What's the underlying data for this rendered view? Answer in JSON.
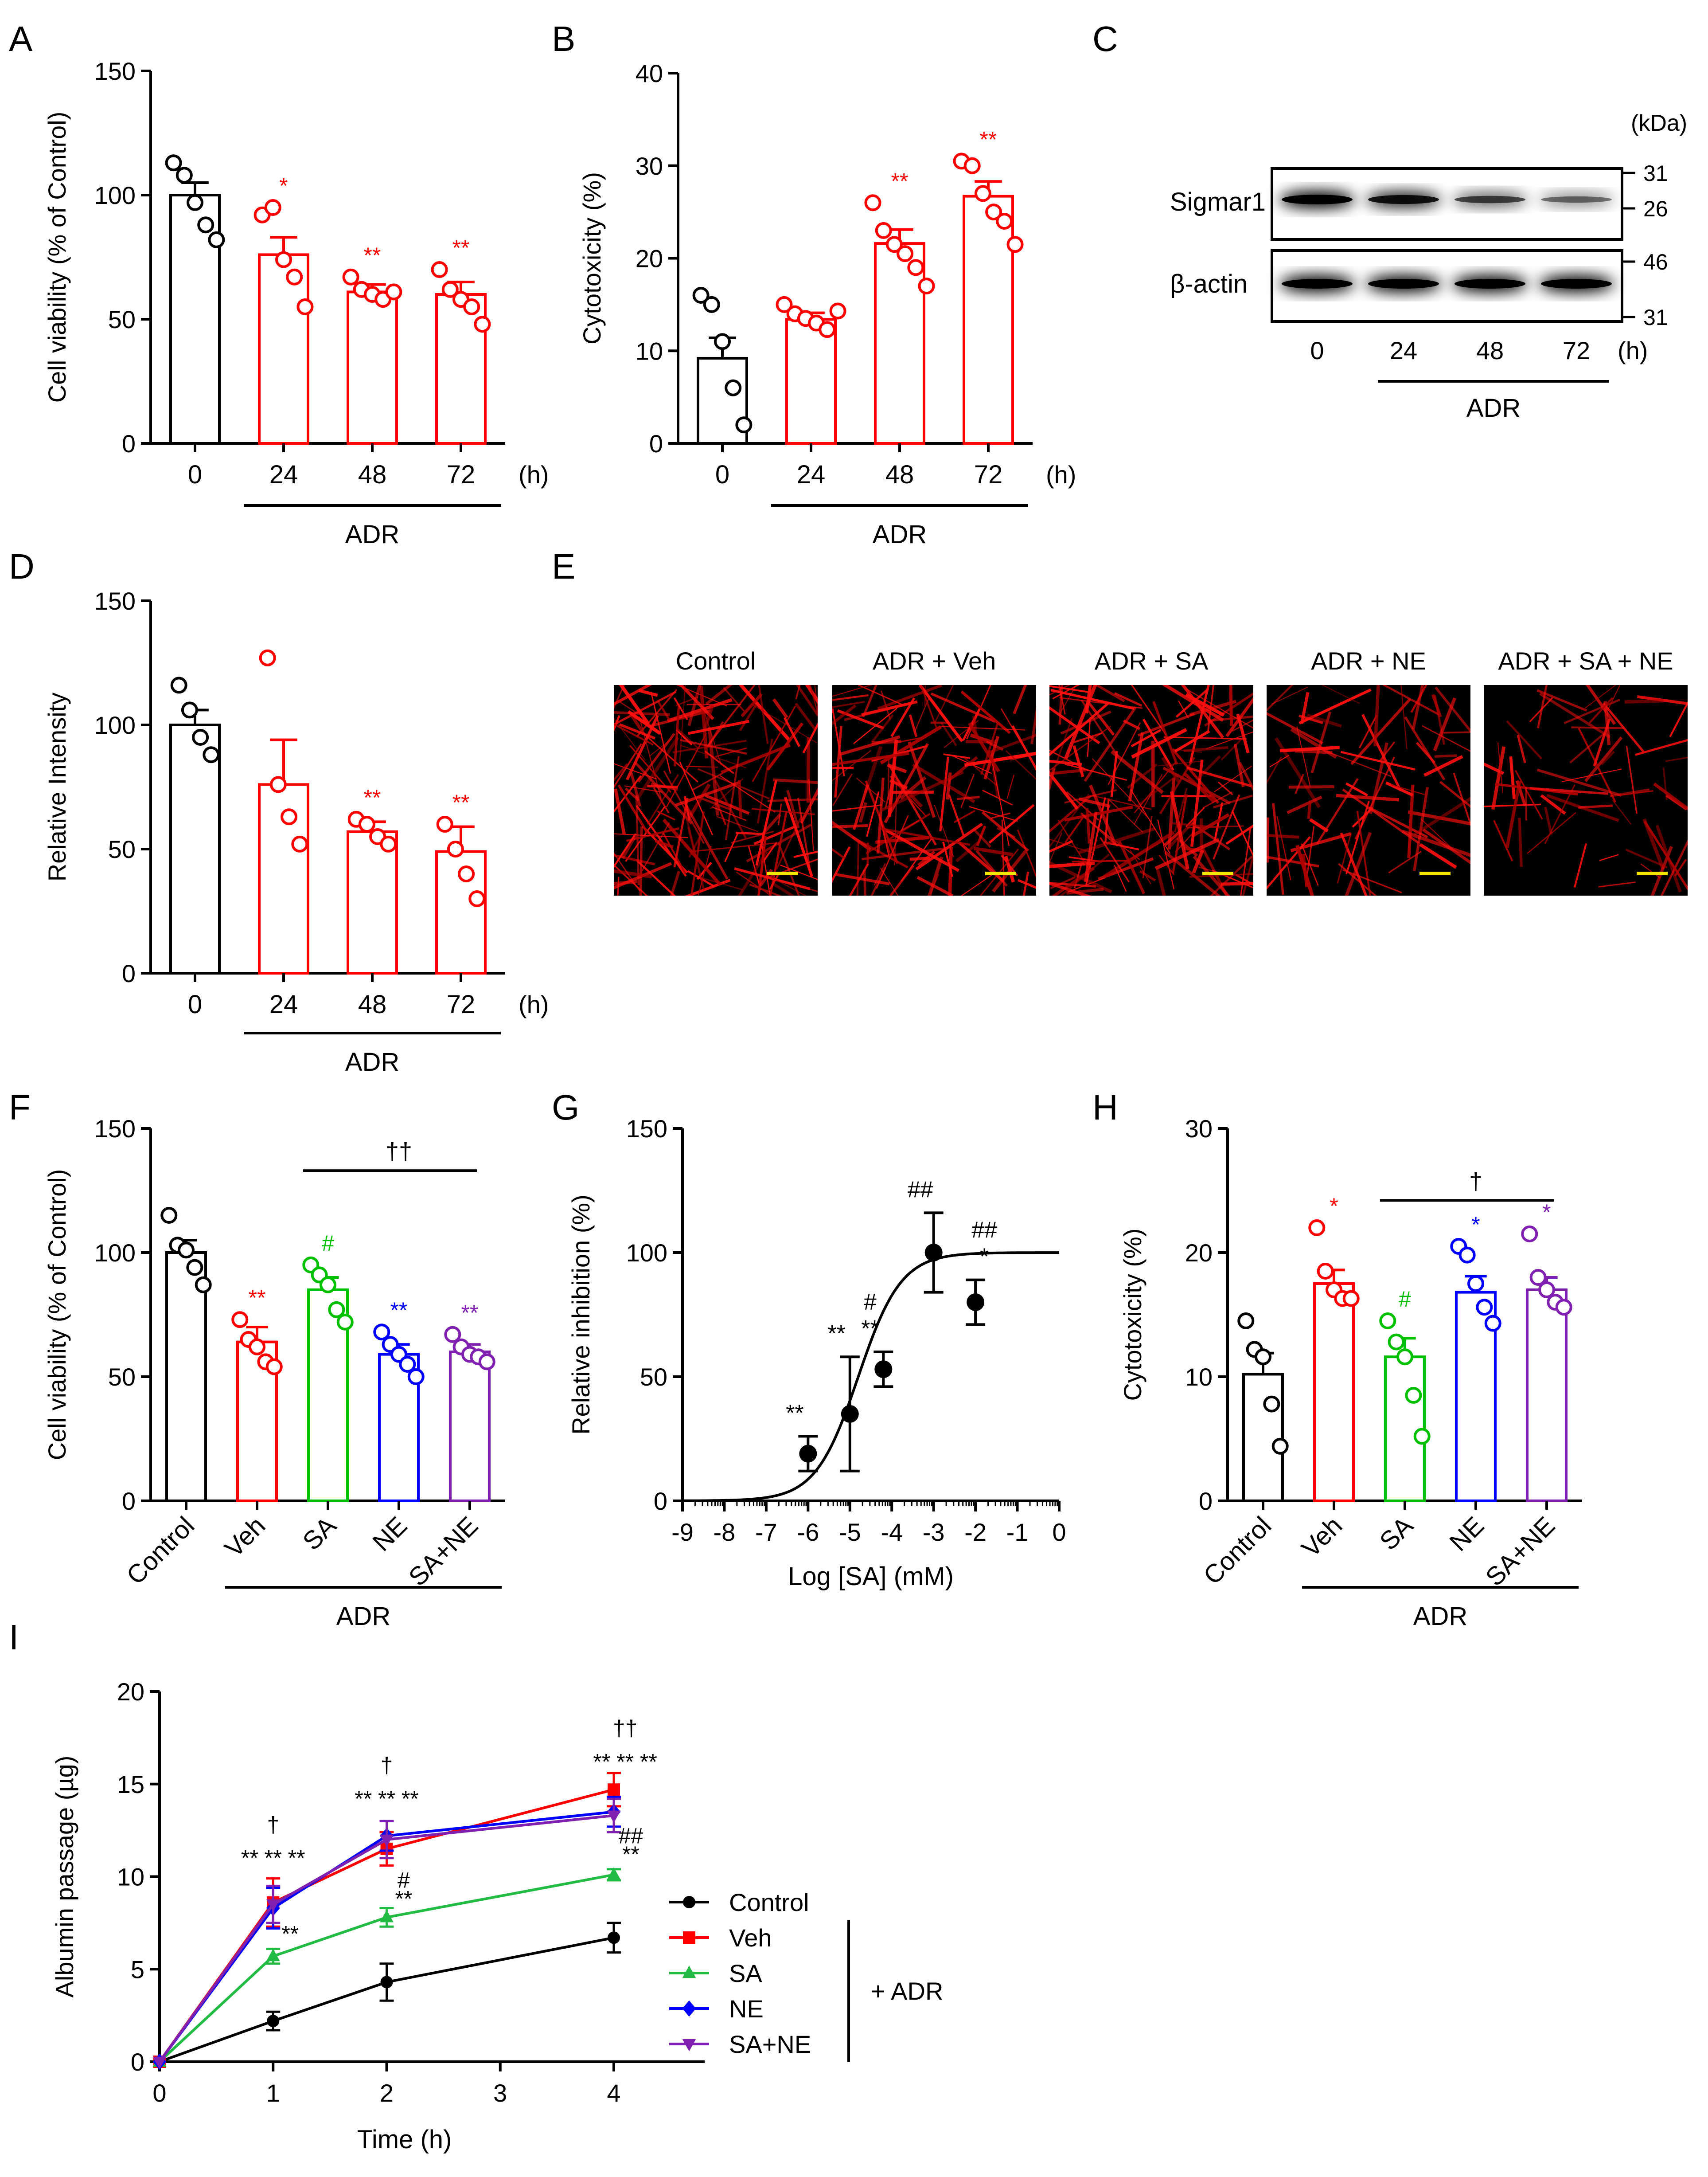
{
  "panels": {
    "A": {
      "letter": "A"
    },
    "B": {
      "letter": "B"
    },
    "C": {
      "letter": "C"
    },
    "D": {
      "letter": "D"
    },
    "E": {
      "letter": "E"
    },
    "F": {
      "letter": "F"
    },
    "G": {
      "letter": "G"
    },
    "H": {
      "letter": "H"
    },
    "I": {
      "letter": "I"
    }
  },
  "blot": {
    "unit": "(kDa)",
    "rows": [
      {
        "label": "Sigmar1",
        "intensity": [
          1.0,
          0.85,
          0.55,
          0.35
        ],
        "markers": [
          "31",
          "26"
        ]
      },
      {
        "label": "β-actin",
        "intensity": [
          1.0,
          1.0,
          1.0,
          1.0
        ],
        "markers": [
          "46",
          "31"
        ]
      }
    ],
    "lanes": [
      "0",
      "24",
      "48",
      "72"
    ],
    "unit_h": "(h)",
    "group": "ADR"
  },
  "micrographs": {
    "labels": [
      "Control",
      "ADR + Veh",
      "ADR + SA",
      "ADR + NE",
      "ADR + SA + NE"
    ],
    "density": [
      0.95,
      0.8,
      0.9,
      0.45,
      0.35
    ],
    "scale_bar_color": "#f2e600"
  },
  "colors": {
    "black": "#000000",
    "red": "#ff0000",
    "green": "#00c000",
    "blue": "#0000ff",
    "purple": "#8020b0",
    "line_green": "#22bb44"
  },
  "chart_data": [
    {
      "id": "A",
      "type": "bar",
      "ylabel": "Cell viability (% of Control)",
      "ylim": [
        0,
        150
      ],
      "yticks": [
        "0",
        "50",
        "100",
        "150"
      ],
      "categories": [
        "0",
        "24",
        "48",
        "72"
      ],
      "x_unit": "(h)",
      "group_label": "ADR",
      "values": [
        100,
        76,
        61,
        60
      ],
      "sem": [
        5,
        7,
        3,
        5
      ],
      "points": [
        [
          113,
          108,
          97,
          88,
          82
        ],
        [
          92,
          95,
          74,
          67,
          55
        ],
        [
          67,
          62,
          60,
          58,
          61
        ],
        [
          70,
          62,
          58,
          55,
          48
        ]
      ],
      "bar_colors": [
        "#000000",
        "#ff0000",
        "#ff0000",
        "#ff0000"
      ],
      "significance": [
        "",
        "*",
        "**",
        "**"
      ]
    },
    {
      "id": "B",
      "type": "bar",
      "ylabel": "Cytotoxicity (%)",
      "ylim": [
        0,
        40
      ],
      "yticks": [
        "0",
        "10",
        "20",
        "30",
        "40"
      ],
      "categories": [
        "0",
        "24",
        "48",
        "72"
      ],
      "x_unit": "(h)",
      "group_label": "ADR",
      "values": [
        9.2,
        13.4,
        21.6,
        26.7
      ],
      "sem": [
        2.2,
        0.7,
        1.5,
        1.6
      ],
      "points": [
        [
          16,
          15,
          11,
          6,
          2
        ],
        [
          15,
          14,
          13.5,
          13,
          12.3,
          14.3
        ],
        [
          26,
          23,
          21.5,
          20.5,
          19,
          17
        ],
        [
          30.5,
          30,
          27,
          25,
          24,
          21.5
        ]
      ],
      "bar_colors": [
        "#000000",
        "#ff0000",
        "#ff0000",
        "#ff0000"
      ],
      "significance": [
        "",
        "",
        "**",
        "**"
      ]
    },
    {
      "id": "D",
      "type": "bar",
      "ylabel": "Relative Intensity",
      "ylim": [
        0,
        150
      ],
      "yticks": [
        "0",
        "50",
        "100",
        "150"
      ],
      "categories": [
        "0",
        "24",
        "48",
        "72"
      ],
      "x_unit": "(h)",
      "group_label": "ADR",
      "values": [
        100,
        76,
        57,
        49
      ],
      "sem": [
        6,
        18,
        4,
        10
      ],
      "points": [
        [
          116,
          106,
          95,
          88
        ],
        [
          127,
          76,
          63,
          52
        ],
        [
          62,
          60,
          55,
          52
        ],
        [
          60,
          50,
          40,
          30
        ]
      ],
      "bar_colors": [
        "#000000",
        "#ff0000",
        "#ff0000",
        "#ff0000"
      ],
      "significance": [
        "",
        "",
        "**",
        "**"
      ]
    },
    {
      "id": "F",
      "type": "bar",
      "ylabel": "Cell viability (% of Control)",
      "ylim": [
        0,
        150
      ],
      "yticks": [
        "0",
        "50",
        "100",
        "150"
      ],
      "categories": [
        "Control",
        "Veh",
        "SA",
        "NE",
        "SA+NE"
      ],
      "group_label": "ADR",
      "values": [
        100,
        64,
        85,
        59,
        60
      ],
      "sem": [
        5,
        6,
        5,
        4,
        3
      ],
      "points": [
        [
          115,
          103,
          101,
          94,
          87
        ],
        [
          73,
          65,
          62,
          56,
          54
        ],
        [
          95,
          91,
          87,
          77,
          72
        ],
        [
          68,
          63,
          59,
          55,
          50
        ],
        [
          67,
          62,
          59,
          58,
          56
        ]
      ],
      "bar_colors": [
        "#000000",
        "#ff0000",
        "#00c000",
        "#0000ff",
        "#8020b0"
      ],
      "significance": [
        "",
        "**",
        "#",
        "**",
        "**"
      ],
      "bracket_label": "††"
    },
    {
      "id": "G",
      "type": "scatter",
      "ylabel": "Relative inhibition (%)",
      "xlabel": "Log [SA] (mM)",
      "xlim": [
        -9,
        0
      ],
      "ylim": [
        0,
        150
      ],
      "xticks": [
        "-9",
        "-8",
        "-7",
        "-6",
        "-5",
        "-4",
        "-3",
        "-2",
        "-1",
        "0"
      ],
      "yticks": [
        "0",
        "50",
        "100",
        "150"
      ],
      "x": [
        -6,
        -5,
        -4.2,
        -3,
        -2
      ],
      "y": [
        19,
        35,
        53,
        100,
        80
      ],
      "err": [
        7,
        23,
        7,
        16,
        9
      ],
      "fit": {
        "bottom": 0,
        "top": 100,
        "log_ic50": -4.8,
        "hill": 0.85
      },
      "annotations": [
        [
          "**"
        ],
        [
          "**"
        ],
        [
          "**",
          "#"
        ],
        [
          "##"
        ],
        [
          "*",
          "##"
        ]
      ]
    },
    {
      "id": "H",
      "type": "bar",
      "ylabel": "Cytotoxicity (%)",
      "ylim": [
        0,
        30
      ],
      "yticks": [
        "0",
        "10",
        "20",
        "30"
      ],
      "categories": [
        "Control",
        "Veh",
        "SA",
        "NE",
        "SA+NE"
      ],
      "group_label": "ADR",
      "values": [
        10.2,
        17.5,
        11.6,
        16.8,
        17.0
      ],
      "sem": [
        1.7,
        1.1,
        1.5,
        1.3,
        1.0
      ],
      "points": [
        [
          14.5,
          12.2,
          11.6,
          7.8,
          4.4
        ],
        [
          22,
          18.5,
          17,
          16.3,
          16.3
        ],
        [
          14.5,
          12.8,
          11.6,
          8.5,
          5.2
        ],
        [
          20.5,
          19.8,
          17.5,
          15.6,
          14.3
        ],
        [
          21.5,
          18,
          17,
          16,
          15.6
        ]
      ],
      "bar_colors": [
        "#000000",
        "#ff0000",
        "#00c000",
        "#0000ff",
        "#8020b0"
      ],
      "significance": [
        "",
        "*",
        "#",
        "*",
        "*"
      ],
      "bracket_label": "†"
    },
    {
      "id": "I",
      "type": "line",
      "ylabel": "Albumin passage (µg)",
      "xlabel": "Time (h)",
      "xlim": [
        0,
        4.8
      ],
      "ylim": [
        0,
        20
      ],
      "xticks": [
        "0",
        "1",
        "2",
        "3",
        "4"
      ],
      "yticks": [
        "0",
        "5",
        "10",
        "15",
        "20"
      ],
      "x": [
        0,
        1,
        2,
        4
      ],
      "series": [
        {
          "name": "Control",
          "values": [
            0,
            2.2,
            4.3,
            6.7
          ],
          "err": [
            0,
            0.5,
            1.0,
            0.8
          ],
          "color": "#000000",
          "marker": "circle"
        },
        {
          "name": "Veh",
          "values": [
            0,
            8.6,
            11.5,
            14.7
          ],
          "err": [
            0,
            1.3,
            0.9,
            0.9
          ],
          "color": "#ff0000",
          "marker": "square"
        },
        {
          "name": "SA",
          "values": [
            0,
            5.7,
            7.8,
            10.1
          ],
          "err": [
            0,
            0.4,
            0.5,
            0.3
          ],
          "color": "#22bb44",
          "marker": "triangle-up"
        },
        {
          "name": "NE",
          "values": [
            0,
            8.3,
            12.2,
            13.5
          ],
          "err": [
            0,
            1.1,
            0.8,
            0.8
          ],
          "color": "#0000ff",
          "marker": "diamond"
        },
        {
          "name": "SA+NE",
          "values": [
            0,
            8.5,
            12.0,
            13.3
          ],
          "err": [
            0,
            1.0,
            1.0,
            0.9
          ],
          "color": "#8020b0",
          "marker": "triangle-down"
        }
      ],
      "legend_group_label": "+ ADR",
      "annotations": [
        {
          "x": 1,
          "y": 10.6,
          "text": "** ** **"
        },
        {
          "x": 1,
          "y": 12.4,
          "text": "†"
        },
        {
          "x": 1.15,
          "y": 6.5,
          "text": "**"
        },
        {
          "x": 2,
          "y": 13.8,
          "text": "** ** **"
        },
        {
          "x": 2,
          "y": 15.6,
          "text": "†"
        },
        {
          "x": 2.15,
          "y": 9.4,
          "text": "#"
        },
        {
          "x": 2.15,
          "y": 8.4,
          "text": "**"
        },
        {
          "x": 4.1,
          "y": 15.8,
          "text": "** ** **"
        },
        {
          "x": 4.1,
          "y": 17.6,
          "text": "††"
        },
        {
          "x": 4.15,
          "y": 11.8,
          "text": "##"
        },
        {
          "x": 4.15,
          "y": 10.8,
          "text": "**"
        }
      ]
    }
  ]
}
